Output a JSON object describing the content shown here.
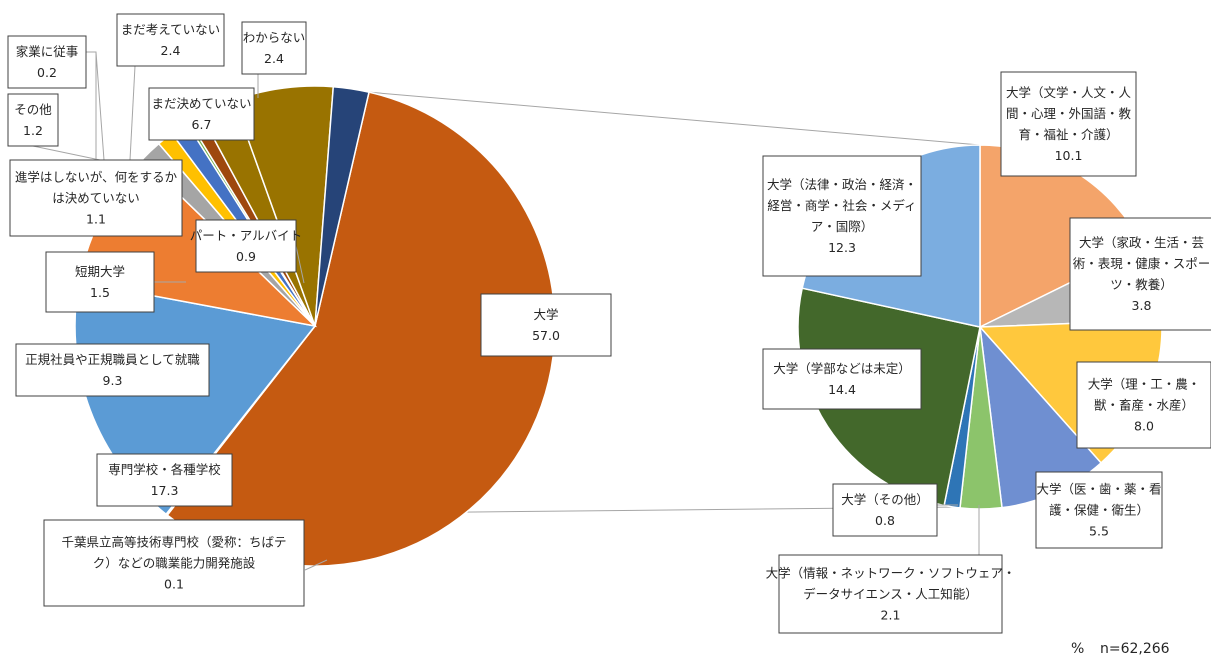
{
  "chart_data": [
    {
      "type": "pie",
      "categories": [
        "大学",
        "千葉県立高等技術専門校（愛称：ちばテク）などの職業能力開発施設",
        "専門学校・各種学校",
        "正規社員や正規職員として就職",
        "短期大学",
        "進学はしないが、何をするかは決めていない",
        "その他",
        "家業に従事",
        "パート・アルバイト",
        "まだ考えていない",
        "まだ決めていない",
        "わからない"
      ],
      "values": [
        57.0,
        0.1,
        17.3,
        9.3,
        1.5,
        1.1,
        1.2,
        0.2,
        0.9,
        2.4,
        6.7,
        2.4
      ],
      "labels": [
        {
          "lines": [
            "大学"
          ],
          "value": "57.0"
        },
        {
          "lines": [
            "千葉県立高等技術専門校（愛称：ちばテ",
            "ク）などの職業能力開発施設"
          ],
          "value": "0.1"
        },
        {
          "lines": [
            "専門学校・各種学校"
          ],
          "value": "17.3"
        },
        {
          "lines": [
            "正規社員や正規職員として就職"
          ],
          "value": "9.3"
        },
        {
          "lines": [
            "短期大学"
          ],
          "value": "1.5"
        },
        {
          "lines": [
            "進学はしないが、何をするか",
            "は決めていない"
          ],
          "value": "1.1"
        },
        {
          "lines": [
            "その他"
          ],
          "value": "1.2"
        },
        {
          "lines": [
            "家業に従事"
          ],
          "value": "0.2"
        },
        {
          "lines": [
            "パート・アルバイト"
          ],
          "value": "0.9"
        },
        {
          "lines": [
            "まだ考えていない"
          ],
          "value": "2.4"
        },
        {
          "lines": [
            "まだ決めていない"
          ],
          "value": "6.7"
        },
        {
          "lines": [
            "わからない"
          ],
          "value": "2.4"
        }
      ],
      "colors": [
        "#C55A11",
        "#5B9BD5",
        "#5B9BD5",
        "#ED7D31",
        "#A5A5A5",
        "#FFC000",
        "#4472C4",
        "#70AD47",
        "#9E480E",
        "#997300",
        "#997300",
        "#264478"
      ]
    },
    {
      "type": "pie",
      "categories": [
        "大学（文学・人文・人間・心理・外国語・教育・福祉・介護）",
        "大学（家政・生活・芸術・表現・健康・スポーツ・教養）",
        "大学（理・工・農・獣・畜産・水産）",
        "大学（医・歯・薬・看護・保健・衛生）",
        "大学（情報・ネットワーク・ソフトウェア・データサイエンス・人工知能）",
        "大学（その他）",
        "大学（学部などは未定）",
        "大学（法律・政治・経済・経営・商学・社会・メディア・国際）"
      ],
      "values": [
        10.1,
        3.8,
        8.0,
        5.5,
        2.1,
        0.8,
        14.4,
        12.3
      ],
      "labels": [
        {
          "lines": [
            "大学（文学・人文・人",
            "間・心理・外国語・教",
            "育・福祉・介護）"
          ],
          "value": "10.1"
        },
        {
          "lines": [
            "大学（家政・生活・芸",
            "術・表現・健康・スポー",
            "ツ・教養）"
          ],
          "value": "3.8"
        },
        {
          "lines": [
            "大学（理・工・農・",
            "獣・畜産・水産）"
          ],
          "value": "8.0"
        },
        {
          "lines": [
            "大学（医・歯・薬・看",
            "護・保健・衛生）"
          ],
          "value": "5.5"
        },
        {
          "lines": [
            "大学（情報・ネットワーク・ソフトウェア・",
            "データサイエンス・人工知能）"
          ],
          "value": "2.1"
        },
        {
          "lines": [
            "大学（その他）"
          ],
          "value": "0.8"
        },
        {
          "lines": [
            "大学（学部などは未定）"
          ],
          "value": "14.4"
        },
        {
          "lines": [
            "大学（法律・政治・経済・",
            "経営・商学・社会・メディ",
            "ア・国際）"
          ],
          "value": "12.3"
        }
      ],
      "colors": [
        "#F4A46A",
        "#B7B7B7",
        "#FFC83D",
        "#6F8FD1",
        "#8CC46B",
        "#2E75B6",
        "#43682B",
        "#7BADE0"
      ]
    }
  ],
  "footer": {
    "unit": "%",
    "n": "n=62,266"
  }
}
